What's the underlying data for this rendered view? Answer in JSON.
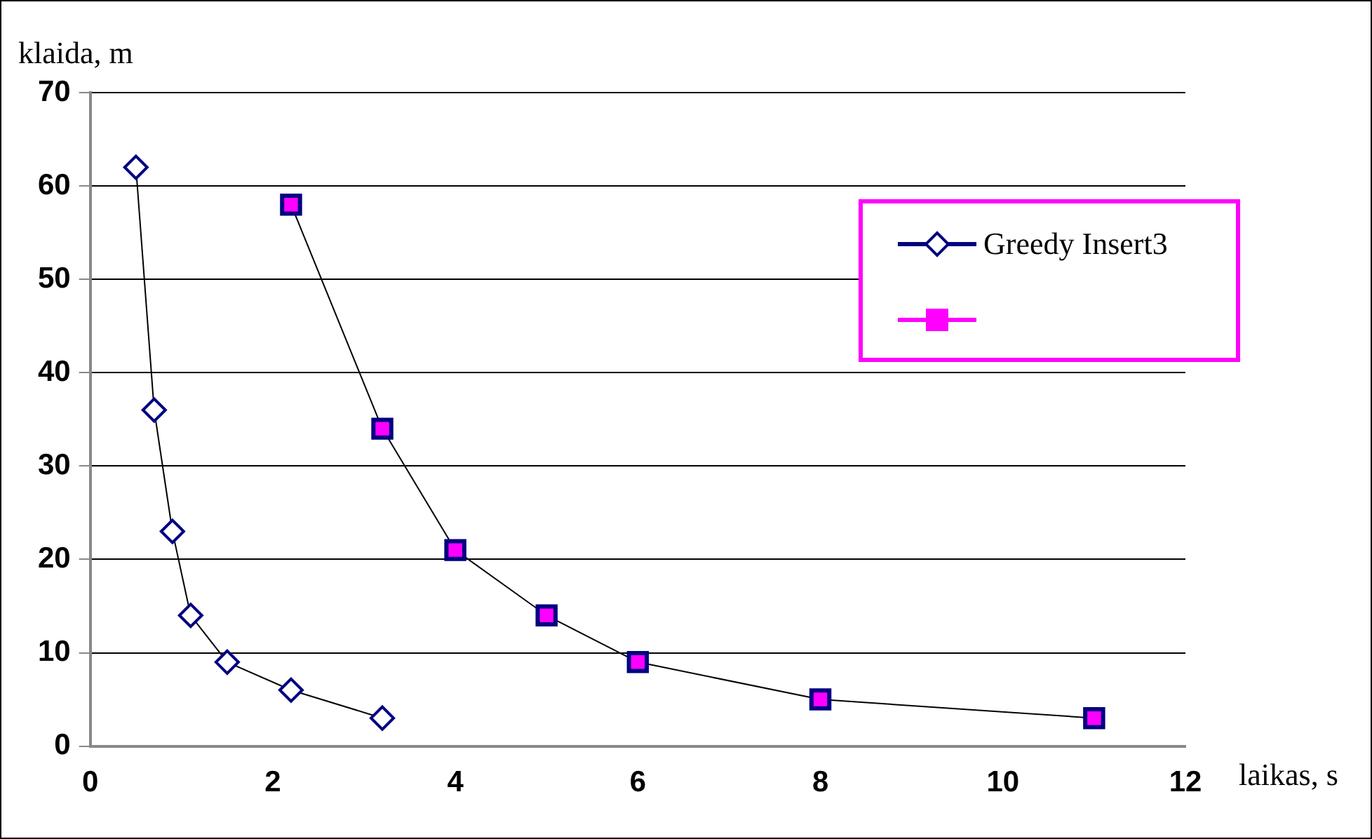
{
  "chart_data": {
    "type": "line",
    "xlabel": "laikas, s",
    "ylabel": "klaida, m",
    "xlim": [
      0,
      12
    ],
    "xticks": [
      0,
      2,
      4,
      6,
      8,
      10,
      12
    ],
    "ylim": [
      0,
      70
    ],
    "yticks": [
      0,
      10,
      20,
      30,
      40,
      50,
      60,
      70
    ],
    "grid": "y",
    "legend": "top right",
    "line_style": "solid",
    "series": [
      {
        "name": "Greedy Insert3",
        "color": "#000080",
        "marker": "diamond",
        "x": [
          0.5,
          0.7,
          0.9,
          1.1,
          1.5,
          2.2,
          3.2
        ],
        "values": [
          62,
          36,
          23,
          14,
          9,
          6,
          3
        ]
      },
      {
        "color": "#ff00ff",
        "marker": "square",
        "x": [
          2.2,
          3.2,
          4,
          5,
          6,
          8,
          11
        ],
        "values": [
          58,
          34,
          21,
          14,
          9,
          5,
          3
        ]
      }
    ]
  }
}
